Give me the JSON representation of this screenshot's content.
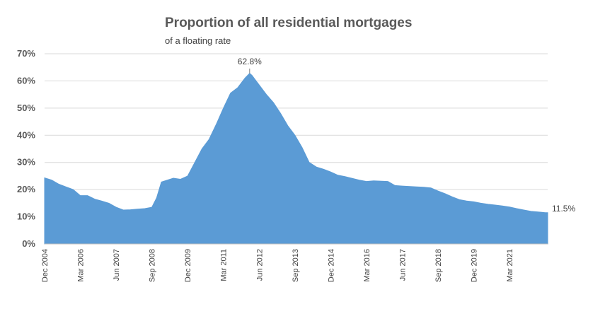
{
  "chart_data": {
    "type": "area",
    "title": "Proportion of all residential mortgages",
    "subtitle": "of a floating rate",
    "ylim": [
      0,
      70
    ],
    "yticks": [
      0,
      10,
      20,
      30,
      40,
      50,
      60,
      70
    ],
    "ytick_labels": [
      "0%",
      "10%",
      "20%",
      "30%",
      "40%",
      "50%",
      "60%",
      "70%"
    ],
    "xlim": [
      "2004-12",
      "2022-07"
    ],
    "xtick_labels": [
      {
        "date": "2004-12",
        "label": "Dec 2004"
      },
      {
        "date": "2006-03",
        "label": "Mar 2006"
      },
      {
        "date": "2007-06",
        "label": "Jun 2007"
      },
      {
        "date": "2008-09",
        "label": "Sep 2008"
      },
      {
        "date": "2009-12",
        "label": "Dec 2009"
      },
      {
        "date": "2011-03",
        "label": "Mar 2011"
      },
      {
        "date": "2012-06",
        "label": "Jun 2012"
      },
      {
        "date": "2013-09",
        "label": "Sep 2013"
      },
      {
        "date": "2014-12",
        "label": "Dec 2014"
      },
      {
        "date": "2016-03",
        "label": "Mar 2016"
      },
      {
        "date": "2017-06",
        "label": "Jun 2017"
      },
      {
        "date": "2018-09",
        "label": "Sep 2018"
      },
      {
        "date": "2019-12",
        "label": "Dec 2019"
      },
      {
        "date": "2021-03",
        "label": "Mar 2021"
      }
    ],
    "grid": true,
    "color": "#5b9bd5",
    "series": [
      {
        "points": [
          [
            "2004-12",
            24.3
          ],
          [
            "2005-03",
            23.5
          ],
          [
            "2005-06",
            22.0
          ],
          [
            "2005-09",
            21.0
          ],
          [
            "2005-12",
            20.0
          ],
          [
            "2006-03",
            17.8
          ],
          [
            "2006-06",
            17.8
          ],
          [
            "2006-09",
            16.5
          ],
          [
            "2006-12",
            15.8
          ],
          [
            "2007-03",
            15.0
          ],
          [
            "2007-06",
            13.5
          ],
          [
            "2007-09",
            12.5
          ],
          [
            "2007-12",
            12.6
          ],
          [
            "2008-03",
            12.8
          ],
          [
            "2008-06",
            13.0
          ],
          [
            "2008-09",
            13.5
          ],
          [
            "2008-11",
            17.0
          ],
          [
            "2009-01",
            22.8
          ],
          [
            "2009-06",
            24.2
          ],
          [
            "2009-09",
            23.8
          ],
          [
            "2009-12",
            25.0
          ],
          [
            "2010-03",
            30.0
          ],
          [
            "2010-06",
            35.0
          ],
          [
            "2010-09",
            38.5
          ],
          [
            "2010-12",
            44.0
          ],
          [
            "2011-03",
            50.0
          ],
          [
            "2011-06",
            55.5
          ],
          [
            "2011-09",
            57.5
          ],
          [
            "2011-12",
            61.0
          ],
          [
            "2012-02",
            62.8
          ],
          [
            "2012-03",
            62.0
          ],
          [
            "2012-06",
            58.5
          ],
          [
            "2012-09",
            55.0
          ],
          [
            "2012-12",
            52.0
          ],
          [
            "2013-03",
            48.0
          ],
          [
            "2013-06",
            43.5
          ],
          [
            "2013-09",
            40.0
          ],
          [
            "2013-12",
            35.5
          ],
          [
            "2014-03",
            30.0
          ],
          [
            "2014-06",
            28.3
          ],
          [
            "2014-09",
            27.5
          ],
          [
            "2014-12",
            26.5
          ],
          [
            "2015-03",
            25.3
          ],
          [
            "2015-06",
            24.8
          ],
          [
            "2015-12",
            23.5
          ],
          [
            "2016-03",
            23.0
          ],
          [
            "2016-06",
            23.2
          ],
          [
            "2016-12",
            23.0
          ],
          [
            "2017-03",
            21.5
          ],
          [
            "2017-06",
            21.3
          ],
          [
            "2017-12",
            21.0
          ],
          [
            "2018-03",
            20.9
          ],
          [
            "2018-06",
            20.6
          ],
          [
            "2018-09",
            19.5
          ],
          [
            "2018-12",
            18.5
          ],
          [
            "2019-03",
            17.3
          ],
          [
            "2019-06",
            16.3
          ],
          [
            "2019-09",
            15.8
          ],
          [
            "2019-12",
            15.5
          ],
          [
            "2020-03",
            15.0
          ],
          [
            "2020-06",
            14.6
          ],
          [
            "2020-09",
            14.3
          ],
          [
            "2020-12",
            14.0
          ],
          [
            "2021-03",
            13.6
          ],
          [
            "2021-06",
            13.0
          ],
          [
            "2021-09",
            12.5
          ],
          [
            "2021-12",
            12.0
          ],
          [
            "2022-03",
            11.8
          ],
          [
            "2022-06",
            11.5
          ]
        ]
      }
    ],
    "annotations": [
      {
        "date": "2012-02",
        "value": 62.8,
        "text": "62.8%"
      },
      {
        "date": "2022-06",
        "value": 11.5,
        "text": "11.5%"
      }
    ]
  }
}
